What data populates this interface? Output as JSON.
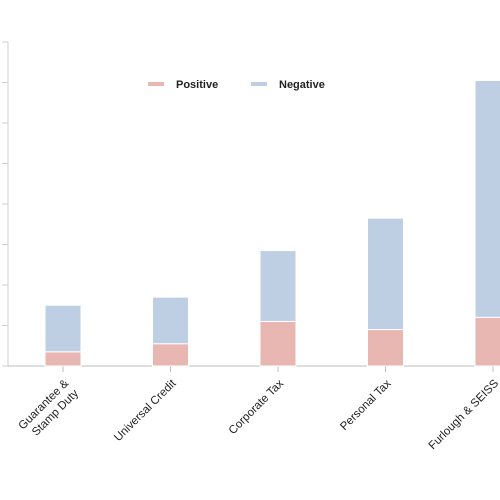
{
  "chart_data": {
    "type": "bar",
    "stacked": true,
    "categories": [
      "Guarantee & Stamp Duty",
      "Universal Credit",
      "Corporate Tax",
      "Personal Tax",
      "Furlough & SEISS"
    ],
    "category_lines": [
      [
        "Guarantee &",
        "Stamp Duty"
      ],
      [
        "Universal Credit"
      ],
      [
        "Corporate Tax"
      ],
      [
        "Personal Tax"
      ],
      [
        "Furlough & SEISS"
      ]
    ],
    "series": [
      {
        "name": "Positive",
        "color": "#e9b7b1",
        "values": [
          3.5,
          5.5,
          11,
          9,
          12
        ]
      },
      {
        "name": "Negative",
        "color": "#bfcfe3",
        "values": [
          11.5,
          11.5,
          17.5,
          27.5,
          58.5
        ]
      }
    ],
    "ylim": [
      0,
      80
    ],
    "yticks": [
      0,
      10,
      20,
      30,
      40,
      50,
      60,
      70,
      80
    ],
    "tick_labels_visible": false,
    "legend_position": "top-center",
    "grid": false
  }
}
